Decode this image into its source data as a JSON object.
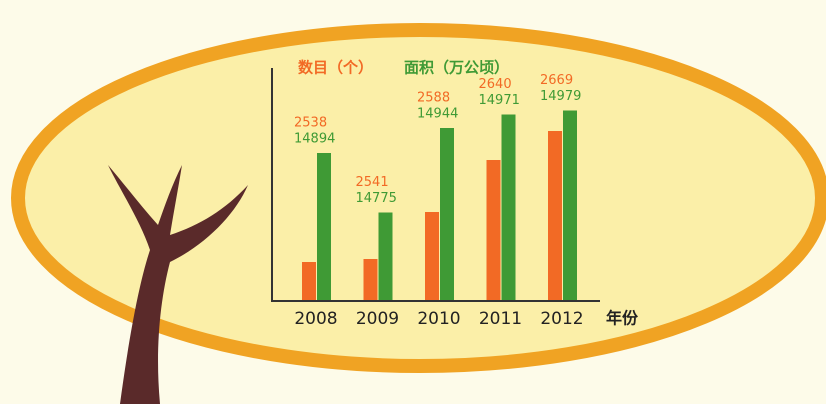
{
  "chart_data": {
    "type": "bar",
    "categories": [
      "2008",
      "2009",
      "2010",
      "2011",
      "2012"
    ],
    "x_label": "年份",
    "series": [
      {
        "name": "数目（个）",
        "color": "#f26a25",
        "values": [
          2538,
          2541,
          2588,
          2640,
          2669
        ]
      },
      {
        "name": "面积（万公顷）",
        "color": "#3f9a35",
        "values": [
          14894,
          14775,
          14944,
          14971,
          14979
        ],
        "axis": "y2"
      }
    ],
    "ylim": [
      2500,
      2700
    ],
    "y2lim": [
      14600,
      15000
    ]
  }
}
